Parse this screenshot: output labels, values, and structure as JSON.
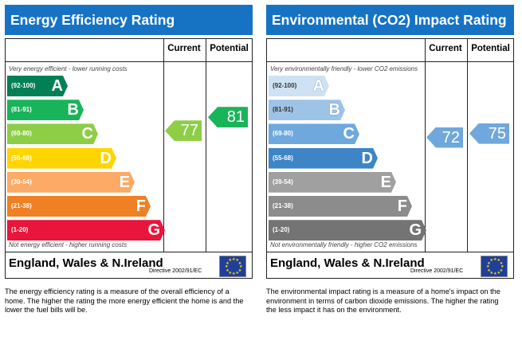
{
  "chart_data": [
    {
      "type": "bar",
      "title": "Energy Efficiency Rating",
      "columns": [
        "Current",
        "Potential"
      ],
      "top_caption": "Very energy efficient - lower running costs",
      "bottom_caption": "Not energy efficient - higher running costs",
      "categories": [
        "A",
        "B",
        "C",
        "D",
        "E",
        "F",
        "G"
      ],
      "ranges": [
        "(92-100)",
        "(81-91)",
        "(69-80)",
        "(55-68)",
        "(39-54)",
        "(21-38)",
        "(1-20)"
      ],
      "band_colors": [
        "#008054",
        "#19b459",
        "#8dce46",
        "#ffd500",
        "#fcaa65",
        "#ef8023",
        "#e9153b"
      ],
      "current": 77,
      "potential": 81,
      "current_band": "C",
      "potential_band": "B",
      "current_color": "#8dce46",
      "potential_color": "#19b459",
      "footer_region": "England, Wales & N.Ireland",
      "footer_directive": "Directive 2002/91/EC"
    },
    {
      "type": "bar",
      "title": "Environmental (CO2) Impact Rating",
      "columns": [
        "Current",
        "Potential"
      ],
      "top_caption": "Very environmentally friendly - lower CO2 emissions",
      "bottom_caption": "Not environmentally friendly - higher CO2 emissions",
      "categories": [
        "A",
        "B",
        "C",
        "D",
        "E",
        "F",
        "G"
      ],
      "ranges": [
        "(92-100)",
        "(81-91)",
        "(69-80)",
        "(55-68)",
        "(39-54)",
        "(21-38)",
        "(1-20)"
      ],
      "band_colors": [
        "#cfe2f3",
        "#9dc3e6",
        "#6fa8dc",
        "#3d85c6",
        "#a0a0a0",
        "#8c8c8c",
        "#747474"
      ],
      "current": 72,
      "potential": 75,
      "current_band": "C",
      "potential_band": "C",
      "current_color": "#6fa8dc",
      "potential_color": "#6fa8dc",
      "footer_region": "England, Wales & N.Ireland",
      "footer_directive": "Directive 2002/91/EC"
    }
  ],
  "descriptions": {
    "energy": "The energy efficiency rating is a measure of the overall efficiency of a home. The higher the rating the more energy efficient the home is and the lower the fuel bills will be.",
    "environmental": "The environmental impact rating is a measure of a home's impact on the environment in terms of carbon dioxide emissions. The higher the rating the less impact it has on the environment."
  }
}
